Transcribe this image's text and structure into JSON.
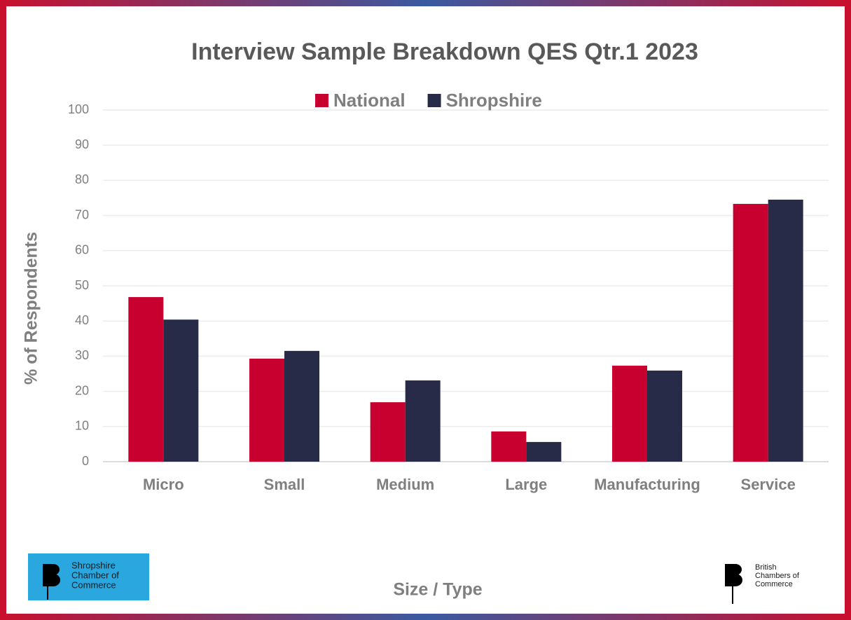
{
  "chart_data": {
    "type": "bar",
    "title": "Interview Sample Breakdown QES Qtr.1 2023",
    "categories": [
      "Micro",
      "Small",
      "Medium",
      "Large",
      "Manufacturing",
      "Service"
    ],
    "series": [
      {
        "name": "National",
        "color": "#c8002f",
        "values": [
          46.8,
          29.3,
          16.9,
          8.6,
          27.3,
          73.3
        ]
      },
      {
        "name": "Shropshire",
        "color": "#272b47",
        "values": [
          40.4,
          31.5,
          23.1,
          5.6,
          25.9,
          74.5
        ]
      }
    ],
    "ylim": [
      0,
      100
    ],
    "yticks": [
      0,
      10,
      20,
      30,
      40,
      50,
      60,
      70,
      80,
      90,
      100
    ],
    "y_label": "% of Respondents",
    "x_label": "Size / Type",
    "grid": true,
    "legend": "top"
  },
  "logos": {
    "left": [
      "Shropshire",
      "Chamber of",
      "Commerce"
    ],
    "right": [
      "British",
      "Chambers of",
      "Commerce"
    ]
  }
}
